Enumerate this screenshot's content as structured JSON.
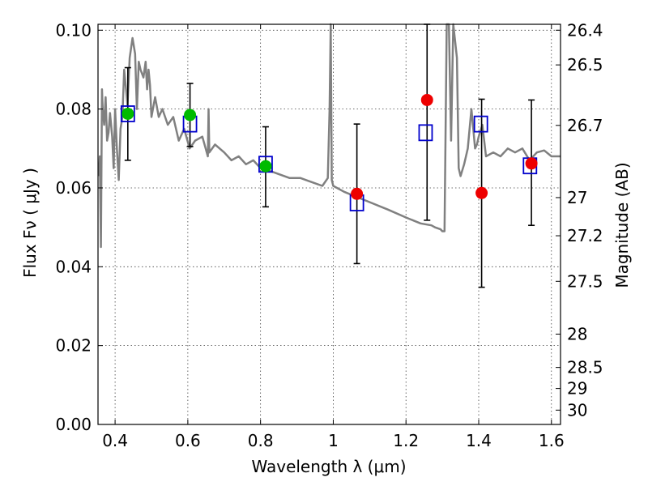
{
  "chart_data": {
    "type": "scatter",
    "title": "",
    "xlabel": "Wavelength  λ (μm)",
    "ylabel": "Flux  Fν  ( μJy )",
    "y2label": "Magnitude (AB)",
    "xlim": [
      0.353,
      1.625
    ],
    "ylim": [
      0.0,
      0.1015
    ],
    "grid": true,
    "x_ticks": [
      0.4,
      0.6,
      0.8,
      1.0,
      1.2,
      1.4,
      1.6
    ],
    "x_tick_labels": [
      "0.4",
      "0.6",
      "0.8",
      "1",
      "1.2",
      "1.4",
      "1.6"
    ],
    "y_ticks": [
      0.0,
      0.02,
      0.04,
      0.06,
      0.08,
      0.1
    ],
    "y_tick_labels": [
      "0.00",
      "0.02",
      "0.04",
      "0.06",
      "0.08",
      "0.10"
    ],
    "mag_ticks": [
      26.4,
      26.5,
      26.7,
      27,
      27.2,
      27.5,
      28,
      28.5,
      29,
      30
    ],
    "mag_tick_labels": [
      "26.4",
      "26.5",
      "26.7",
      "27",
      "27.2",
      "27.5",
      "28",
      "28.5",
      "29",
      "30"
    ],
    "colors": {
      "spectrum": "#808080",
      "model_box": "#0000cc",
      "green_point": "#00bb00",
      "red_point": "#ee0000",
      "errorbar": "#000000"
    },
    "model_photometry": [
      {
        "x": 0.435,
        "y": 0.0788
      },
      {
        "x": 0.606,
        "y": 0.0762
      },
      {
        "x": 0.814,
        "y": 0.066
      },
      {
        "x": 1.065,
        "y": 0.0562
      },
      {
        "x": 1.254,
        "y": 0.074
      },
      {
        "x": 1.406,
        "y": 0.0762
      },
      {
        "x": 1.541,
        "y": 0.0656
      }
    ],
    "observed_points": [
      {
        "x": 0.435,
        "y": 0.0788,
        "err_low": 0.067,
        "err_high": 0.0905,
        "group": "green"
      },
      {
        "x": 0.606,
        "y": 0.0785,
        "err_low": 0.0705,
        "err_high": 0.0865,
        "group": "green"
      },
      {
        "x": 0.814,
        "y": 0.0655,
        "err_low": 0.0552,
        "err_high": 0.0755,
        "group": "green"
      },
      {
        "x": 1.065,
        "y": 0.0585,
        "err_low": 0.0408,
        "err_high": 0.0762,
        "group": "red"
      },
      {
        "x": 1.258,
        "y": 0.0823,
        "err_low": 0.0518,
        "err_high": 0.1015,
        "group": "red"
      },
      {
        "x": 1.408,
        "y": 0.0587,
        "err_low": 0.0348,
        "err_high": 0.0825,
        "group": "red"
      },
      {
        "x": 1.545,
        "y": 0.0662,
        "err_low": 0.0505,
        "err_high": 0.0823,
        "group": "red"
      }
    ],
    "spectrum": {
      "x": [
        0.355,
        0.358,
        0.361,
        0.364,
        0.366,
        0.37,
        0.374,
        0.378,
        0.382,
        0.386,
        0.392,
        0.396,
        0.4,
        0.405,
        0.41,
        0.415,
        0.42,
        0.425,
        0.43,
        0.434,
        0.44,
        0.448,
        0.455,
        0.46,
        0.465,
        0.47,
        0.478,
        0.484,
        0.488,
        0.492,
        0.496,
        0.5,
        0.51,
        0.52,
        0.53,
        0.545,
        0.56,
        0.575,
        0.59,
        0.605,
        0.62,
        0.64,
        0.655,
        0.657,
        0.659,
        0.675,
        0.7,
        0.72,
        0.74,
        0.76,
        0.78,
        0.8,
        0.82,
        0.85,
        0.88,
        0.91,
        0.94,
        0.97,
        0.985,
        0.99,
        0.993,
        0.996,
        1.0,
        1.03,
        1.07,
        1.11,
        1.15,
        1.2,
        1.24,
        1.27,
        1.28,
        1.295,
        1.3,
        1.306,
        1.312,
        1.318,
        1.324,
        1.33,
        1.34,
        1.345,
        1.35,
        1.36,
        1.37,
        1.38,
        1.385,
        1.39,
        1.395,
        1.4,
        1.41,
        1.42,
        1.44,
        1.46,
        1.48,
        1.5,
        1.52,
        1.54,
        1.56,
        1.58,
        1.6,
        1.625
      ],
      "y": [
        0.063,
        0.068,
        0.045,
        0.085,
        0.08,
        0.076,
        0.083,
        0.072,
        0.074,
        0.079,
        0.073,
        0.065,
        0.08,
        0.07,
        0.062,
        0.075,
        0.078,
        0.09,
        0.085,
        0.081,
        0.093,
        0.098,
        0.094,
        0.08,
        0.092,
        0.09,
        0.088,
        0.092,
        0.085,
        0.09,
        0.086,
        0.078,
        0.083,
        0.078,
        0.08,
        0.076,
        0.078,
        0.072,
        0.075,
        0.07,
        0.072,
        0.073,
        0.068,
        0.08,
        0.069,
        0.071,
        0.069,
        0.067,
        0.068,
        0.066,
        0.067,
        0.065,
        0.0645,
        0.0635,
        0.0625,
        0.0625,
        0.0615,
        0.0605,
        0.0625,
        0.08,
        0.1015,
        0.062,
        0.0605,
        0.059,
        0.0575,
        0.056,
        0.0545,
        0.0525,
        0.051,
        0.0505,
        0.05,
        0.0495,
        0.049,
        0.049,
        0.1015,
        0.1015,
        0.072,
        0.1015,
        0.093,
        0.065,
        0.063,
        0.066,
        0.07,
        0.08,
        0.075,
        0.07,
        0.071,
        0.073,
        0.076,
        0.068,
        0.069,
        0.068,
        0.07,
        0.069,
        0.07,
        0.067,
        0.069,
        0.0695,
        0.068,
        0.068
      ]
    }
  }
}
